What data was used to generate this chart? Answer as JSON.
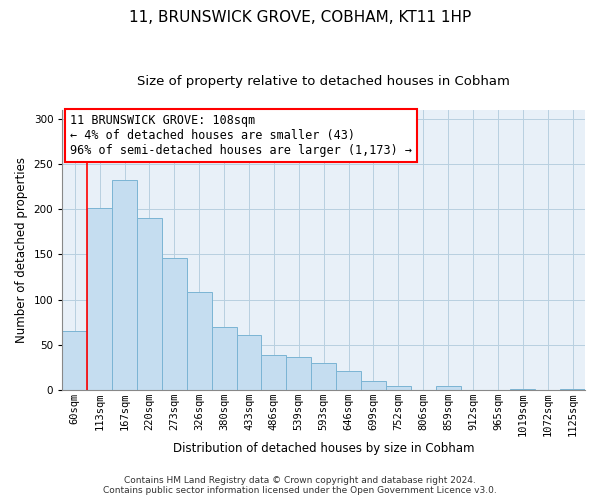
{
  "title": "11, BRUNSWICK GROVE, COBHAM, KT11 1HP",
  "subtitle": "Size of property relative to detached houses in Cobham",
  "xlabel": "Distribution of detached houses by size in Cobham",
  "ylabel": "Number of detached properties",
  "bar_labels": [
    "60sqm",
    "113sqm",
    "167sqm",
    "220sqm",
    "273sqm",
    "326sqm",
    "380sqm",
    "433sqm",
    "486sqm",
    "539sqm",
    "593sqm",
    "646sqm",
    "699sqm",
    "752sqm",
    "806sqm",
    "859sqm",
    "912sqm",
    "965sqm",
    "1019sqm",
    "1072sqm",
    "1125sqm"
  ],
  "bar_heights": [
    65,
    202,
    233,
    190,
    146,
    108,
    70,
    61,
    39,
    37,
    30,
    21,
    10,
    4,
    0,
    4,
    0,
    0,
    1,
    0,
    1
  ],
  "bar_color": "#c5ddf0",
  "bar_edge_color": "#7bb4d4",
  "annotation_box_text_line1": "11 BRUNSWICK GROVE: 108sqm",
  "annotation_box_text_line2": "← 4% of detached houses are smaller (43)",
  "annotation_box_text_line3": "96% of semi-detached houses are larger (1,173) →",
  "annotation_box_color": "white",
  "annotation_box_edge_color": "red",
  "marker_line_color": "red",
  "ylim": [
    0,
    310
  ],
  "yticks": [
    0,
    50,
    100,
    150,
    200,
    250,
    300
  ],
  "footer_line1": "Contains HM Land Registry data © Crown copyright and database right 2024.",
  "footer_line2": "Contains public sector information licensed under the Open Government Licence v3.0.",
  "bg_color": "#ffffff",
  "plot_bg_color": "#e8f0f8",
  "title_fontsize": 11,
  "subtitle_fontsize": 9.5,
  "axis_label_fontsize": 8.5,
  "tick_fontsize": 7.5,
  "annotation_fontsize": 8.5,
  "footer_fontsize": 6.5
}
